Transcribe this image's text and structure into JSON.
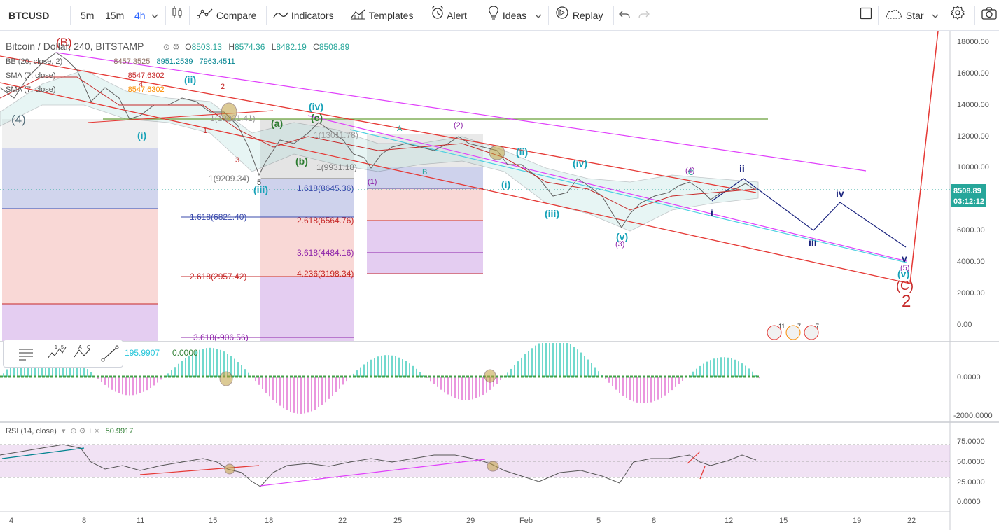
{
  "toolbar": {
    "symbol": "BTCUSD",
    "intervals": [
      "5m",
      "15m",
      "4h"
    ],
    "active_interval": "4h",
    "chart_type_icon": "candles-icon",
    "compare": "Compare",
    "indicators": "Indicators",
    "templates": "Templates",
    "alert": "Alert",
    "ideas": "Ideas",
    "replay": "Replay",
    "star": "Star"
  },
  "legend": {
    "title": "Bitcoin / Dollar, 240, BITSTAMP",
    "ohlc": {
      "o_label": "O",
      "o": "8503.13",
      "h_label": "H",
      "h": "8574.36",
      "l_label": "L",
      "l": "8482.19",
      "c_label": "C",
      "c": "8508.89"
    },
    "bb_label": "BB (20, close, 2)",
    "bb_values": [
      "8457.3525",
      "8951.2539",
      "7963.4511"
    ],
    "sma1_label": "SMA (7, close)",
    "sma1_value": "8547.6302",
    "sma2_label": "SMA (7, close)",
    "sma2_value": "8547.6302"
  },
  "price_axis": {
    "ticks": [
      "18000.00",
      "16000.00",
      "14000.00",
      "12000.00",
      "10000.00",
      "8000.00",
      "6000.00",
      "4000.00",
      "2000.00",
      "0.00"
    ],
    "current_price": "8508.89",
    "countdown": "03:12:12",
    "current_color": "#26a69a"
  },
  "time_axis": {
    "ticks": [
      "4",
      "8",
      "11",
      "15",
      "18",
      "22",
      "25",
      "29",
      "Feb",
      "5",
      "8",
      "12",
      "15",
      "19",
      "22"
    ]
  },
  "macd": {
    "values": [
      "195.9907",
      "0.0000"
    ],
    "axis_ticks": [
      "0.0000",
      "-2000.0000"
    ]
  },
  "rsi": {
    "label": "RSI (14, close)",
    "value": "50.9917",
    "axis_ticks": [
      "75.0000",
      "50.0000",
      "25.0000",
      "0.0000"
    ]
  },
  "fib_labels": [
    "1(9209.34)",
    "1.618(6821.40)",
    "2.618(2957.42)",
    "3.618(-906.56)",
    "1(9931.18)",
    "1.618(8645.36)",
    "2.618(6564.76)",
    "3.618(4484.16)",
    "4.236(3198.34)",
    "1(13011.78)",
    "1(13021.41)"
  ],
  "wave_labels": [
    "(B)",
    "(4)",
    "(i)",
    "(ii)",
    "(iii)",
    "(iv)",
    "(v)",
    "(i)",
    "(ii)",
    "(iii)",
    "(iv)",
    "(v)",
    "(a)",
    "(b)",
    "(c)",
    "(1)",
    "(2)",
    "(3)",
    "(4)",
    "(5)",
    "(C)",
    "2",
    "i",
    "ii",
    "iii",
    "iv",
    "v",
    "A",
    "B",
    "C",
    "1",
    "2",
    "3",
    "4",
    "5"
  ],
  "event_badges": [
    "11",
    "7",
    "7"
  ],
  "colors": {
    "accent": "#2962ff",
    "up": "#26a69a",
    "down": "#ef5350",
    "fib_magenta": "#e040fb",
    "wave_teal": "#17a2b8",
    "wave_navy": "#1a237e",
    "red_line": "#e53935"
  }
}
